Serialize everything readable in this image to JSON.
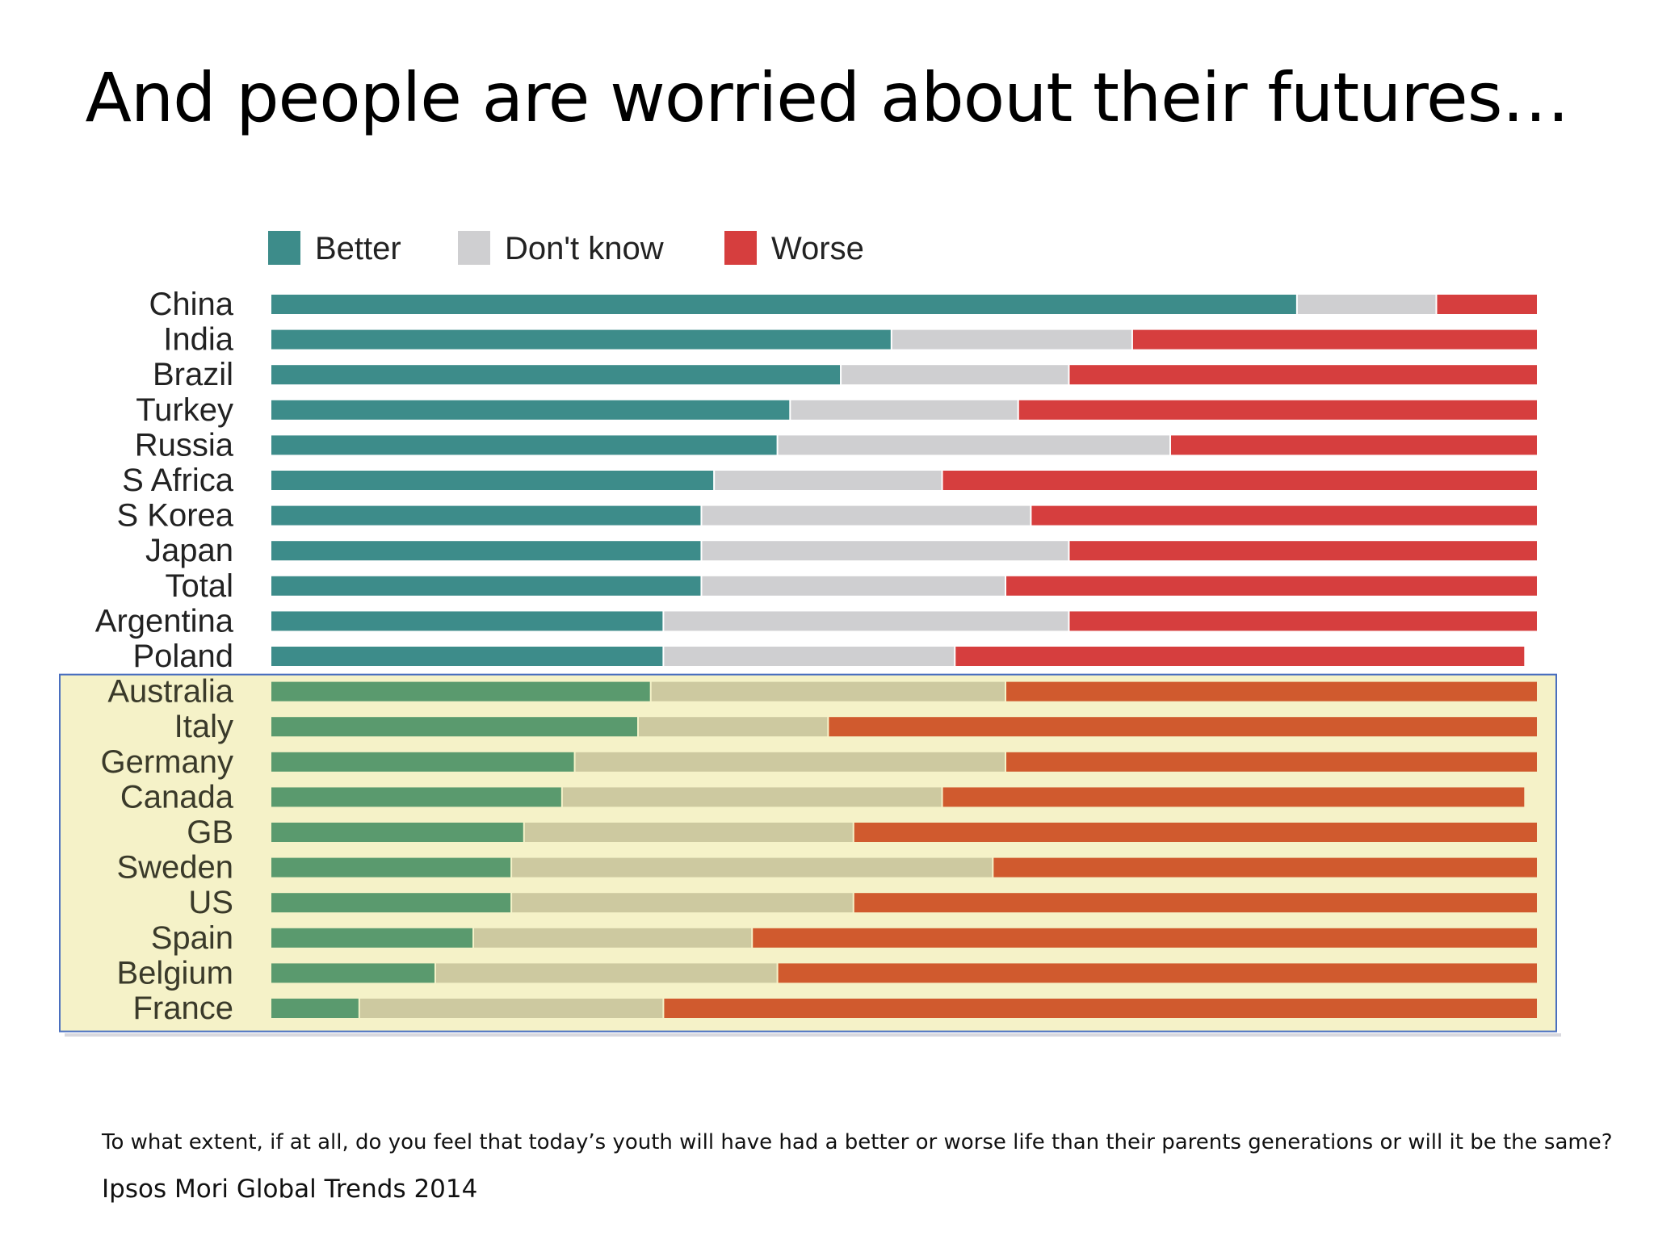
{
  "slide": {
    "title": "And people are worried about their futures…",
    "caption": "To what extent, if at all, do you feel that today’s youth will have had a better or worse life than their parents generations or will it be the same?",
    "source": "Ipsos Mori Global Trends 2014"
  },
  "chart_data": {
    "type": "bar",
    "orientation": "horizontal",
    "stacked": true,
    "unit": "percent",
    "xlim": [
      0,
      100
    ],
    "grid": false,
    "legend_placement": "top-left",
    "categories": [
      "China",
      "India",
      "Brazil",
      "Turkey",
      "Russia",
      "S Africa",
      "S Korea",
      "Japan",
      "Total",
      "Argentina",
      "Poland",
      "Australia",
      "Italy",
      "Germany",
      "Canada",
      "GB",
      "Sweden",
      "US",
      "Spain",
      "Belgium",
      "France"
    ],
    "series": [
      {
        "name": "Better",
        "color": "#3d8c8a",
        "highlight_color": "#5a9a6e",
        "values": [
          81,
          49,
          45,
          41,
          40,
          35,
          34,
          34,
          34,
          31,
          31,
          30,
          29,
          24,
          23,
          20,
          19,
          19,
          16,
          13,
          7
        ]
      },
      {
        "name": "Don't know",
        "color": "#cfcfd1",
        "highlight_color": "#cdc9a0",
        "values": [
          11,
          19,
          18,
          18,
          31,
          18,
          26,
          29,
          24,
          32,
          23,
          28,
          15,
          34,
          30,
          26,
          38,
          27,
          22,
          27,
          24
        ]
      },
      {
        "name": "Worse",
        "color": "#d63e3e",
        "highlight_color": "#d05a2e",
        "values": [
          8,
          32,
          37,
          41,
          29,
          47,
          40,
          37,
          42,
          37,
          45,
          42,
          56,
          42,
          46,
          54,
          43,
          54,
          62,
          60,
          69
        ]
      }
    ],
    "highlighted_categories": [
      "Australia",
      "Italy",
      "Germany",
      "Canada",
      "GB",
      "Sweden",
      "US",
      "Spain",
      "Belgium",
      "France"
    ],
    "highlight_background": "#f5f2c8",
    "highlight_border": "#4a6fbf"
  }
}
